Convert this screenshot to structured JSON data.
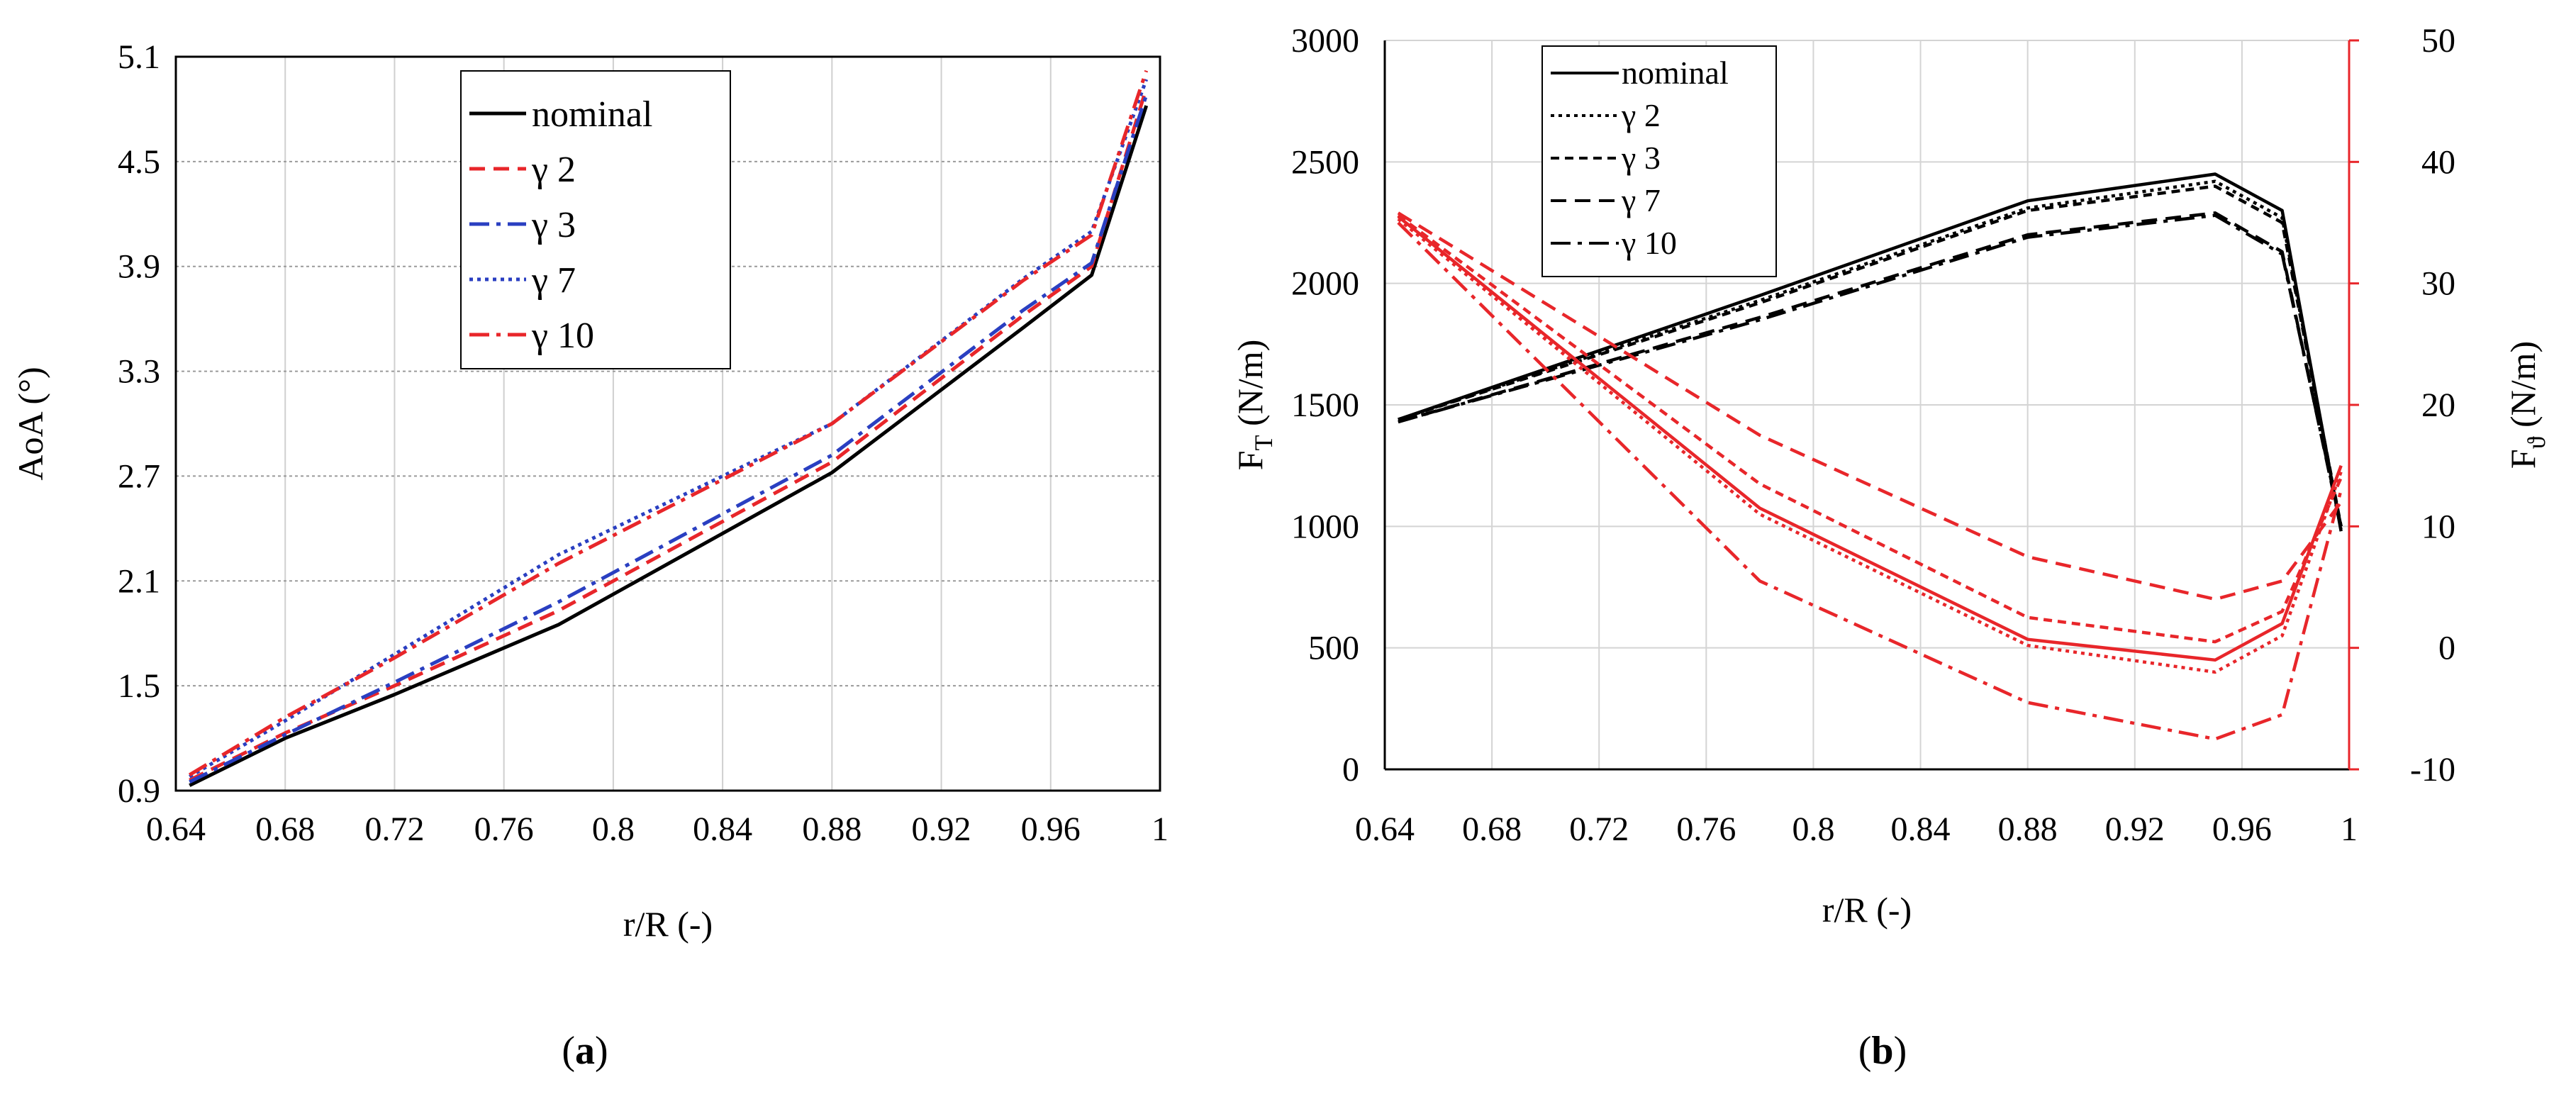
{
  "chart_data": [
    {
      "type": "line",
      "panel_label_open": "(",
      "panel_label_letter": "a",
      "panel_label_close": ")",
      "xlabel": "r/R (-)",
      "ylabel": "AoA (°)",
      "xlim": [
        0.64,
        1.0
      ],
      "ylim": [
        0.9,
        5.1
      ],
      "xticks": [
        "0.64",
        "0.68",
        "0.72",
        "0.76",
        "0.8",
        "0.84",
        "0.88",
        "0.92",
        "0.96",
        "1"
      ],
      "yticks": [
        "0.9",
        "1.5",
        "2.1",
        "2.7",
        "3.3",
        "3.9",
        "4.5",
        "5.1"
      ],
      "grid": true,
      "legend_position": "top-center",
      "series": [
        {
          "name": "nominal",
          "color": "#000000",
          "dash": "solid",
          "x": [
            0.645,
            0.68,
            0.72,
            0.78,
            0.88,
            0.95,
            0.975,
            0.995
          ],
          "y": [
            0.93,
            1.2,
            1.45,
            1.85,
            2.72,
            3.55,
            3.85,
            4.82
          ]
        },
        {
          "name": "γ 2",
          "color": "#e8262a",
          "dash": "dashed",
          "x": [
            0.645,
            0.68,
            0.72,
            0.78,
            0.88,
            0.95,
            0.975,
            0.995
          ],
          "y": [
            0.96,
            1.23,
            1.5,
            1.93,
            2.78,
            3.62,
            3.9,
            4.92
          ]
        },
        {
          "name": "γ 3",
          "color": "#2a3fc1",
          "dash": "dashdot",
          "x": [
            0.645,
            0.68,
            0.72,
            0.78,
            0.88,
            0.95,
            0.975,
            0.995
          ],
          "y": [
            0.95,
            1.22,
            1.52,
            1.98,
            2.82,
            3.65,
            3.92,
            4.88
          ]
        },
        {
          "name": "γ 7",
          "color": "#2a3fc1",
          "dash": "dotted",
          "x": [
            0.645,
            0.68,
            0.72,
            0.78,
            0.88,
            0.95,
            0.975,
            0.995
          ],
          "y": [
            0.98,
            1.3,
            1.68,
            2.25,
            3.0,
            3.83,
            4.1,
            4.97
          ]
        },
        {
          "name": "γ 10",
          "color": "#e8262a",
          "dash": "dashdot",
          "x": [
            0.645,
            0.68,
            0.72,
            0.78,
            0.88,
            0.95,
            0.975,
            0.995
          ],
          "y": [
            0.99,
            1.32,
            1.66,
            2.2,
            3.0,
            3.82,
            4.08,
            5.02
          ]
        }
      ]
    },
    {
      "type": "line",
      "panel_label_open": "(",
      "panel_label_letter": "b",
      "panel_label_close": ")",
      "xlabel": "r/R (-)",
      "ylabel_main": "F",
      "ylabel_sub": "T",
      "ylabel_unit": " (N/m)",
      "y2label_main": "F",
      "y2label_sub": "ϑ",
      "y2label_unit": " (N/m)",
      "xlim": [
        0.64,
        1.0
      ],
      "ylim": [
        0,
        3000
      ],
      "y2lim": [
        -10,
        50
      ],
      "xticks": [
        "0.64",
        "0.68",
        "0.72",
        "0.76",
        "0.8",
        "0.84",
        "0.88",
        "0.92",
        "0.96",
        "1"
      ],
      "yticks": [
        "0",
        "500",
        "1000",
        "1500",
        "2000",
        "2500",
        "3000"
      ],
      "y2ticks": [
        "-10",
        "0",
        "10",
        "20",
        "30",
        "40",
        "50"
      ],
      "grid": true,
      "legend_position": "top-left",
      "series": [
        {
          "name": "nominal",
          "axis": "left",
          "color": "#000000",
          "dash": "solid",
          "x": [
            0.645,
            0.78,
            0.88,
            0.95,
            0.975,
            0.997
          ],
          "y": [
            1440,
            1950,
            2340,
            2450,
            2300,
            980
          ]
        },
        {
          "name": "γ 2",
          "axis": "left",
          "color": "#000000",
          "dash": "dotted",
          "x": [
            0.645,
            0.78,
            0.88,
            0.95,
            0.975,
            0.997
          ],
          "y": [
            1440,
            1930,
            2310,
            2420,
            2270,
            990
          ]
        },
        {
          "name": "γ 3",
          "axis": "left",
          "color": "#000000",
          "dash": "dashed-fine",
          "x": [
            0.645,
            0.78,
            0.88,
            0.95,
            0.975,
            0.997
          ],
          "y": [
            1440,
            1920,
            2300,
            2400,
            2250,
            1000
          ]
        },
        {
          "name": "γ 7",
          "axis": "left",
          "color": "#000000",
          "dash": "dashed",
          "x": [
            0.645,
            0.78,
            0.88,
            0.95,
            0.975,
            0.997
          ],
          "y": [
            1430,
            1860,
            2200,
            2290,
            2130,
            990
          ]
        },
        {
          "name": "γ 10",
          "axis": "left",
          "color": "#000000",
          "dash": "dashdot",
          "x": [
            0.645,
            0.78,
            0.88,
            0.95,
            0.975,
            0.997
          ],
          "y": [
            1430,
            1850,
            2190,
            2280,
            2120,
            1000
          ]
        },
        {
          "name": "nominal",
          "axis": "right",
          "color": "#e8262a",
          "dash": "solid",
          "legend": false,
          "x": [
            0.645,
            0.78,
            0.88,
            0.95,
            0.975,
            0.997
          ],
          "y": [
            35.5,
            11.5,
            0.7,
            -1.0,
            2.0,
            15.0
          ]
        },
        {
          "name": "γ 2",
          "axis": "right",
          "color": "#e8262a",
          "dash": "dotted",
          "legend": false,
          "x": [
            0.645,
            0.78,
            0.88,
            0.95,
            0.975,
            0.997
          ],
          "y": [
            35.3,
            11.0,
            0.2,
            -2.0,
            1.0,
            14.5
          ]
        },
        {
          "name": "γ 3",
          "axis": "right",
          "color": "#e8262a",
          "dash": "dashed-fine",
          "legend": false,
          "x": [
            0.645,
            0.78,
            0.88,
            0.95,
            0.975,
            0.997
          ],
          "y": [
            35.6,
            13.5,
            2.5,
            0.5,
            3.0,
            14.0
          ]
        },
        {
          "name": "γ 7",
          "axis": "right",
          "color": "#e8262a",
          "dash": "dashed",
          "legend": false,
          "x": [
            0.645,
            0.78,
            0.88,
            0.95,
            0.975,
            0.997
          ],
          "y": [
            35.8,
            17.5,
            7.5,
            4.0,
            5.5,
            12.0
          ]
        },
        {
          "name": "γ 10",
          "axis": "right",
          "color": "#e8262a",
          "dash": "dashdot",
          "legend": false,
          "x": [
            0.645,
            0.78,
            0.88,
            0.95,
            0.975,
            0.997
          ],
          "y": [
            35.0,
            5.5,
            -4.5,
            -7.5,
            -5.5,
            13.0
          ]
        }
      ]
    }
  ]
}
